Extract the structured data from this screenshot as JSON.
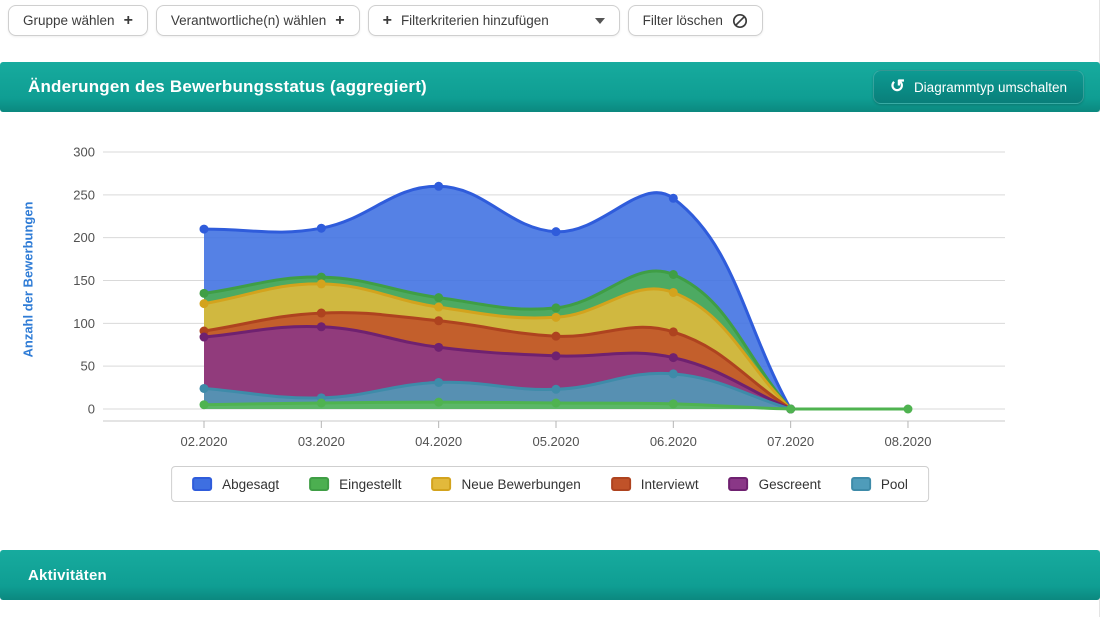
{
  "filters": {
    "group_button": "Gruppe wählen",
    "responsible_button": "Verantwortliche(n) wählen",
    "add_criteria_button": "Filterkriterien hinzufügen",
    "clear_button": "Filter löschen"
  },
  "chart_card": {
    "title": "Änderungen des Bewerbungsstatus (aggregiert)",
    "toggle_button": "Diagrammtyp umschalten"
  },
  "activities_card": {
    "title": "Aktivitäten"
  },
  "colors": {
    "teal_bar": "#0f9e93",
    "teal_button": "#097f7a",
    "grid_line": "#d9d9d9",
    "axis_line": "#c9c9c9",
    "tick_text": "#525252",
    "y_axis_title": "#2f7cd6"
  },
  "chart_data": {
    "type": "area",
    "title": "Änderungen des Bewerbungsstatus (aggregiert)",
    "xlabel": "",
    "ylabel": "Anzahl der Bewerbungen",
    "x": [
      "02.2020",
      "03.2020",
      "04.2020",
      "05.2020",
      "06.2020",
      "07.2020",
      "08.2020"
    ],
    "ylim": [
      0,
      300
    ],
    "ytick_step": 50,
    "grid": true,
    "legend_position": "bottom",
    "series": [
      {
        "name": "Abgesagt",
        "color": "#3e6fe1",
        "line": "#2f5cdb",
        "values": [
          210,
          211,
          260,
          207,
          246,
          0,
          null
        ]
      },
      {
        "name": "Eingestellt",
        "color": "#4caf50",
        "line": "#3f9e45",
        "values": [
          135,
          154,
          130,
          118,
          157,
          0,
          null
        ]
      },
      {
        "name": "Neue Bewerbungen",
        "color": "#e2b93b",
        "line": "#d3a31d",
        "values": [
          123,
          146,
          119,
          107,
          136,
          0,
          null
        ]
      },
      {
        "name": "Interviewt",
        "color": "#c05229",
        "line": "#ae431f",
        "values": [
          91,
          112,
          103,
          85,
          90,
          0,
          null
        ]
      },
      {
        "name": "Gescreent",
        "color": "#8a3787",
        "line": "#6f2170",
        "values": [
          84,
          96,
          72,
          62,
          60,
          0,
          null
        ]
      },
      {
        "name": "Pool",
        "color": "#4f9cba",
        "line": "#3e8ba9",
        "values": [
          24,
          13,
          31,
          23,
          41,
          0,
          null
        ]
      },
      {
        "name": "Eingestellt",
        "color": "#5cbc5c",
        "line": "#4fb350",
        "values": [
          5,
          7,
          8,
          7,
          6,
          0,
          0
        ],
        "in_legend": false
      }
    ]
  }
}
